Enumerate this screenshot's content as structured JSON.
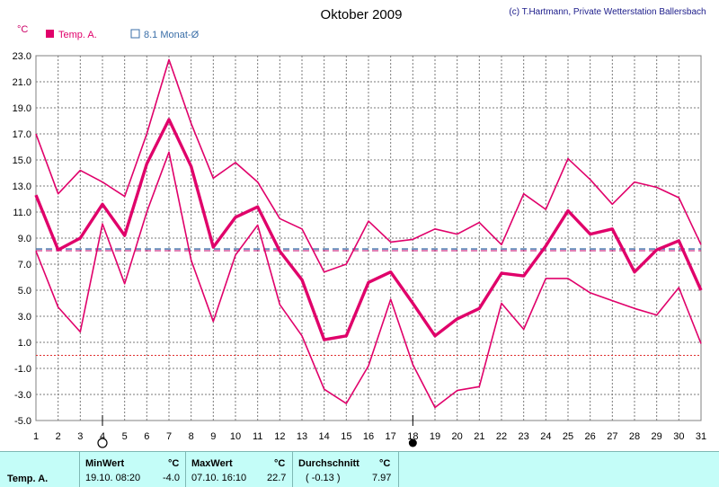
{
  "header": {
    "title": "Oktober 2009",
    "credit": "(c) T.Hartmann, Private Wetterstation Ballersbach",
    "unit": "°C"
  },
  "legend": {
    "temp_label": "Temp. A.",
    "avg_label": "8.1 Monat-Ø"
  },
  "colors": {
    "series": "#e0006a",
    "avg_line_blue": "#3b6fa8",
    "avg_line_magenta": "#c0006a",
    "zero_line": "#e03030",
    "grid": "#7a7a7a",
    "panel_bg": "#c4fdf8"
  },
  "chart_data": {
    "type": "line",
    "title": "Oktober 2009",
    "x": [
      1,
      2,
      3,
      4,
      5,
      6,
      7,
      8,
      9,
      10,
      11,
      12,
      13,
      14,
      15,
      16,
      17,
      18,
      19,
      20,
      21,
      22,
      23,
      24,
      25,
      26,
      27,
      28,
      29,
      30,
      31
    ],
    "ylim": [
      -5.0,
      23.0
    ],
    "yticks": [
      "23.0",
      "21.0",
      "19.0",
      "17.0",
      "15.0",
      "13.0",
      "11.0",
      "9.0",
      "7.0",
      "5.0",
      "3.0",
      "1.0",
      "-1.0",
      "-3.0",
      "-5.0"
    ],
    "xticks": [
      "1",
      "2",
      "3",
      "4",
      "5",
      "6",
      "7",
      "8",
      "9",
      "10",
      "11",
      "12",
      "13",
      "14",
      "15",
      "16",
      "17",
      "18",
      "19",
      "20",
      "21",
      "22",
      "23",
      "24",
      "25",
      "26",
      "27",
      "28",
      "29",
      "30",
      "31"
    ],
    "grid": true,
    "series": [
      {
        "name": "Temp. A.",
        "values": [
          17.0,
          12.4,
          14.2,
          13.3,
          12.2,
          17.0,
          22.7,
          17.8,
          13.6,
          14.8,
          13.3,
          10.5,
          9.7,
          6.4,
          7.0,
          10.3,
          8.7,
          8.9,
          9.7,
          9.3,
          10.2,
          8.5,
          12.4,
          11.2,
          15.1,
          13.5,
          11.6,
          13.3,
          12.9,
          12.1,
          8.5
        ]
      },
      {
        "values": [
          12.3,
          8.1,
          9.0,
          11.6,
          9.2,
          14.7,
          18.1,
          14.5,
          8.3,
          10.6,
          11.4,
          8.0,
          5.8,
          1.2,
          1.5,
          5.6,
          6.4,
          4.0,
          1.5,
          2.8,
          3.6,
          6.3,
          6.1,
          8.4,
          11.1,
          9.3,
          9.7,
          6.4,
          8.1,
          8.8,
          5.0
        ]
      },
      {
        "values": [
          8.0,
          3.7,
          1.8,
          10.1,
          5.5,
          11.0,
          15.6,
          7.3,
          2.6,
          7.7,
          10.0,
          3.9,
          1.5,
          -2.6,
          -3.7,
          -0.8,
          4.3,
          -0.7,
          -4.0,
          -2.7,
          -2.4,
          4.0,
          2.0,
          5.9,
          5.9,
          4.8,
          4.2,
          3.6,
          3.1,
          5.2,
          0.9
        ]
      }
    ],
    "reference_lines": [
      {
        "name": "8.1 Monat-Ø",
        "value": 8.1
      },
      {
        "value": 0.0
      }
    ],
    "moon_phases": [
      {
        "day": 4,
        "phase": "full"
      },
      {
        "day": 18,
        "phase": "new"
      }
    ]
  },
  "stats": {
    "row_label": "Temp. A.",
    "min": {
      "header": "MinWert",
      "unit": "°C",
      "datetime": "19.10.  08:20",
      "value": "-4.0"
    },
    "max": {
      "header": "MaxWert",
      "unit": "°C",
      "datetime": "07.10.  16:10",
      "value": "22.7"
    },
    "avg": {
      "header": "Durchschnitt",
      "unit": "°C",
      "deviation": "( -0.13 )",
      "value": "7.97"
    }
  }
}
